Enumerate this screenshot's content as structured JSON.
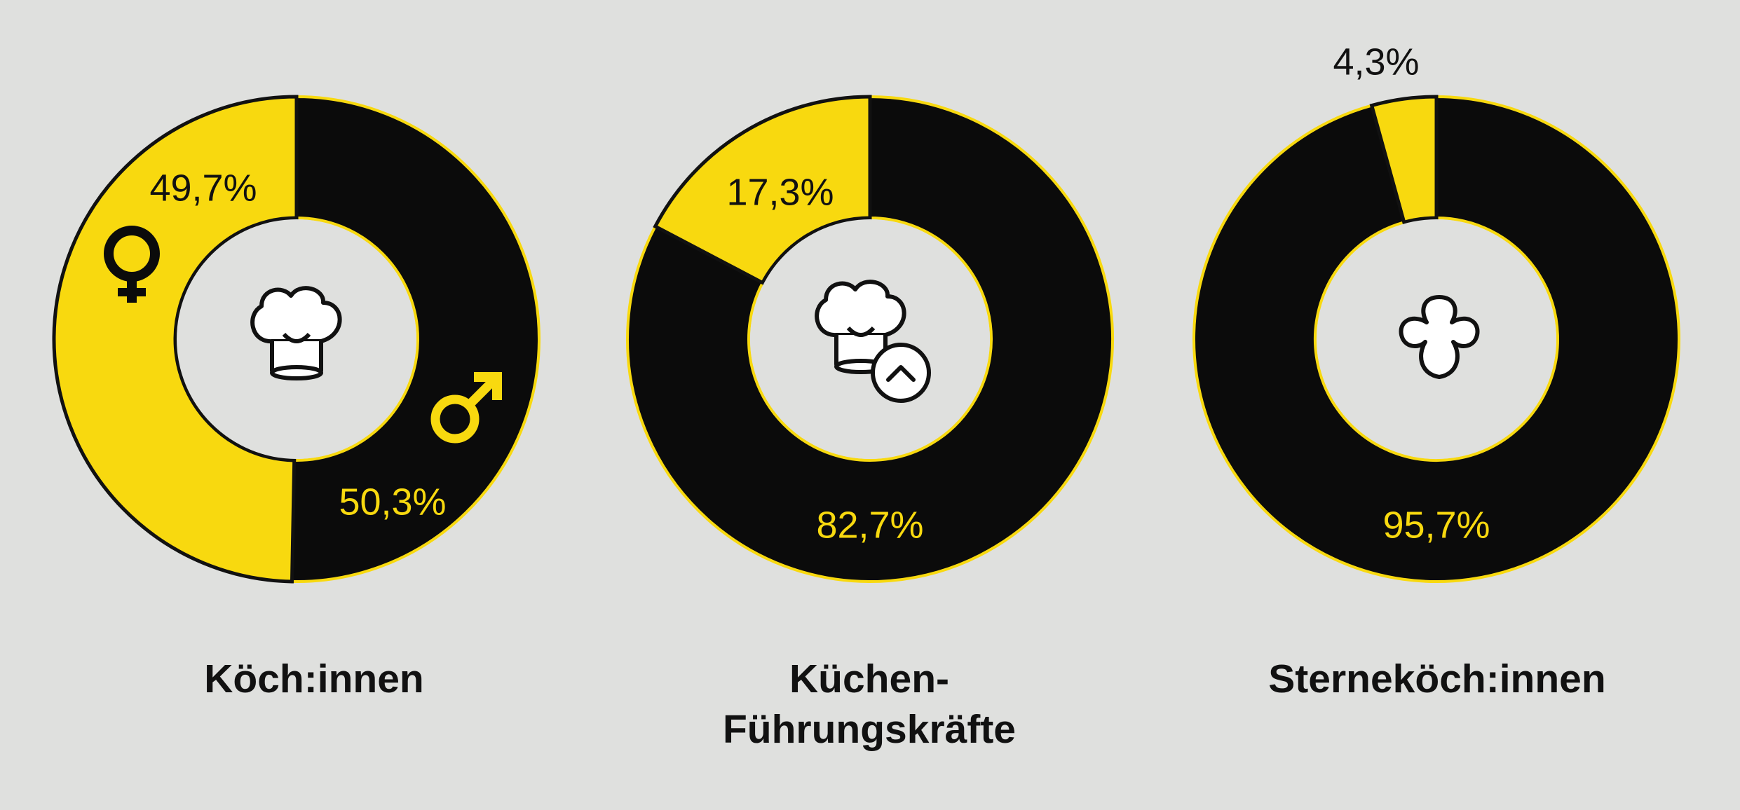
{
  "colors": {
    "background": "#dfe0de",
    "yellow": "#f8d90f",
    "black": "#0b0b0b",
    "inner": "#dfe0de"
  },
  "chart_data": [
    {
      "type": "pie",
      "variant": "donut",
      "title": "Köch:innen",
      "slices": [
        {
          "label": "49,7%",
          "value": 49.7,
          "color": "#f8d90f",
          "symbol": "female-icon"
        },
        {
          "label": "50,3%",
          "value": 50.3,
          "color": "#0b0b0b",
          "symbol": "male-icon"
        }
      ],
      "center_icon": "chef-hat-icon"
    },
    {
      "type": "pie",
      "variant": "donut",
      "title": "Küchen-\nFührungskräfte",
      "slices": [
        {
          "label": "17,3%",
          "value": 17.3,
          "color": "#f8d90f"
        },
        {
          "label": "82,7%",
          "value": 82.7,
          "color": "#0b0b0b"
        }
      ],
      "center_icon": "chef-hat-promotion-icon"
    },
    {
      "type": "pie",
      "variant": "donut",
      "title": "Sterneköch:innen",
      "slices": [
        {
          "label": "4,3%",
          "value": 4.3,
          "color": "#f8d90f"
        },
        {
          "label": "95,7%",
          "value": 95.7,
          "color": "#0b0b0b"
        }
      ],
      "center_icon": "michelin-star-icon"
    }
  ]
}
